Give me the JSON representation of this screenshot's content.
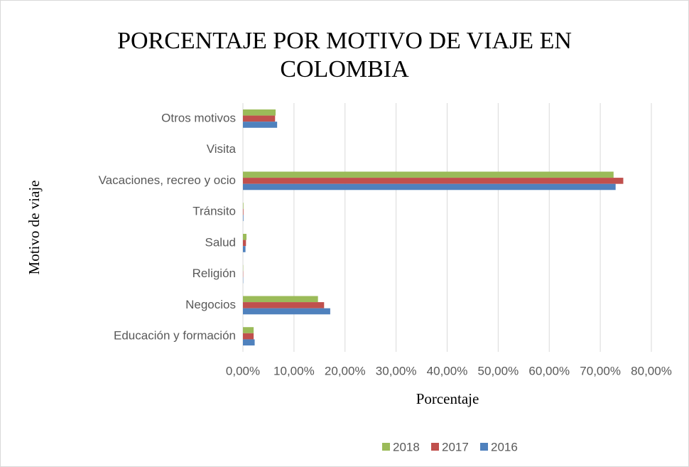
{
  "chart_data": {
    "type": "hbar",
    "title": "PORCENTAJE POR MOTIVO DE VIAJE EN COLOMBIA",
    "x_label": "Porcentaje",
    "y_label": "Motivo de viaje",
    "categories": [
      "Otros motivos",
      "Visita",
      "Vacaciones, recreo y ocio",
      "Tránsito",
      "Salud",
      "Religión",
      "Negocios",
      "Educación y formación"
    ],
    "series": [
      {
        "name": "2018",
        "color": "#9bbb59",
        "values": [
          6.4,
          0,
          72.6,
          0.1,
          0.7,
          0.05,
          14.7,
          2.1
        ]
      },
      {
        "name": "2017",
        "color": "#c0504d",
        "values": [
          6.3,
          0,
          74.5,
          0.1,
          0.6,
          0.05,
          15.9,
          2.1
        ]
      },
      {
        "name": "2016",
        "color": "#4f81bd",
        "values": [
          6.7,
          0,
          73.0,
          0.1,
          0.5,
          0.05,
          17.1,
          2.3
        ]
      }
    ],
    "xlim": [
      0,
      80
    ],
    "xticks": [
      {
        "value": 0,
        "label": "0,00%"
      },
      {
        "value": 10,
        "label": "10,00%"
      },
      {
        "value": 20,
        "label": "20,00%"
      },
      {
        "value": 30,
        "label": "30,00%"
      },
      {
        "value": 40,
        "label": "40,00%"
      },
      {
        "value": 50,
        "label": "50,00%"
      },
      {
        "value": 60,
        "label": "60,00%"
      },
      {
        "value": 70,
        "label": "70,00%"
      },
      {
        "value": 80,
        "label": "80,00%"
      }
    ],
    "grid": true,
    "legend": "bottom"
  }
}
